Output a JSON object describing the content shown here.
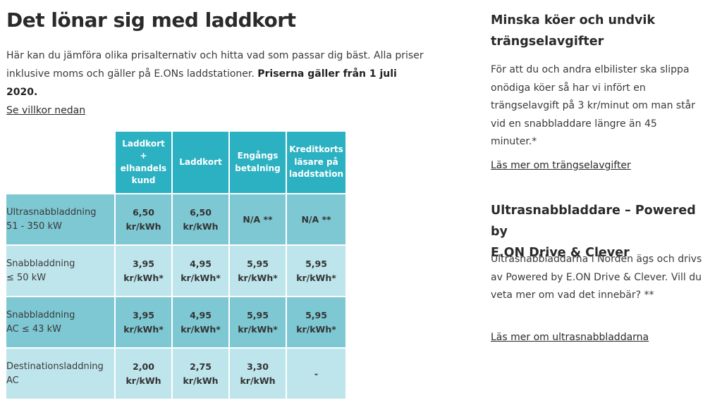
{
  "main": {
    "title": "Det lönar sig med laddkort",
    "intro_text": "Här kan du jämföra olika prisalternativ och hitta vad som passar dig bäst. Alla priser inklusive moms och gäller på E.ONs laddstationer.",
    "intro_bold": "Priserna gäller från 1 juli 2020.",
    "terms_link": "Se villkor nedan"
  },
  "table": {
    "columns": [
      [
        "Laddkort",
        "+",
        "elhandels",
        "kund"
      ],
      [
        "Laddkort"
      ],
      [
        "Engångs",
        "betalning"
      ],
      [
        "Kreditkorts",
        "läsare på",
        "laddstation"
      ]
    ],
    "rows": [
      {
        "label": [
          "Ultrasnabbladdning",
          "51 - 350 kW"
        ],
        "values": [
          [
            "6,50",
            "kr/kWh"
          ],
          [
            "6,50",
            "kr/kWh"
          ],
          [
            "N/A **"
          ],
          [
            "N/A **"
          ]
        ]
      },
      {
        "label": [
          "Snabbladdning",
          "≤ 50 kW"
        ],
        "values": [
          [
            "3,95",
            "kr/kWh*"
          ],
          [
            "4,95",
            "kr/kWh*"
          ],
          [
            "5,95",
            "kr/kWh*"
          ],
          [
            "5,95",
            "kr/kWh*"
          ]
        ]
      },
      {
        "label": [
          "Snabbladdning",
          "AC ≤ 43 kW"
        ],
        "values": [
          [
            "3,95",
            "kr/kWh*"
          ],
          [
            "4,95",
            "kr/kWh*"
          ],
          [
            "5,95",
            "kr/kWh*"
          ],
          [
            "5,95",
            "kr/kWh*"
          ]
        ]
      },
      {
        "label": [
          "Destinationsladdning",
          "AC"
        ],
        "values": [
          [
            "2,00",
            "kr/kWh"
          ],
          [
            "2,75",
            "kr/kWh"
          ],
          [
            "3,30",
            "kr/kWh"
          ],
          [
            "-"
          ]
        ]
      }
    ]
  },
  "sidebar": {
    "section1": {
      "heading": [
        "Minska köer och undvik",
        "trängselavgifter"
      ],
      "body": [
        "För att du och andra elbilister ska slippa",
        "onödiga köer så har vi infört en",
        "trängselavgift på 3 kr/minut om man står",
        "vid en snabbladdare längre än 45 minuter.*"
      ],
      "link": "Läs mer om trängselavgifter"
    },
    "section2": {
      "heading": [
        "Ultrasnabbladdare – Powered by",
        "E.ON Drive & Clever"
      ],
      "body": [
        "Ultrasnabbladdarna i Norden ägs och drivs",
        "av Powered by E.ON Drive & Clever. Vill du",
        "veta mer om vad det innebär? **"
      ],
      "link": "Läs mer om ultrasnabbladdarna"
    }
  }
}
